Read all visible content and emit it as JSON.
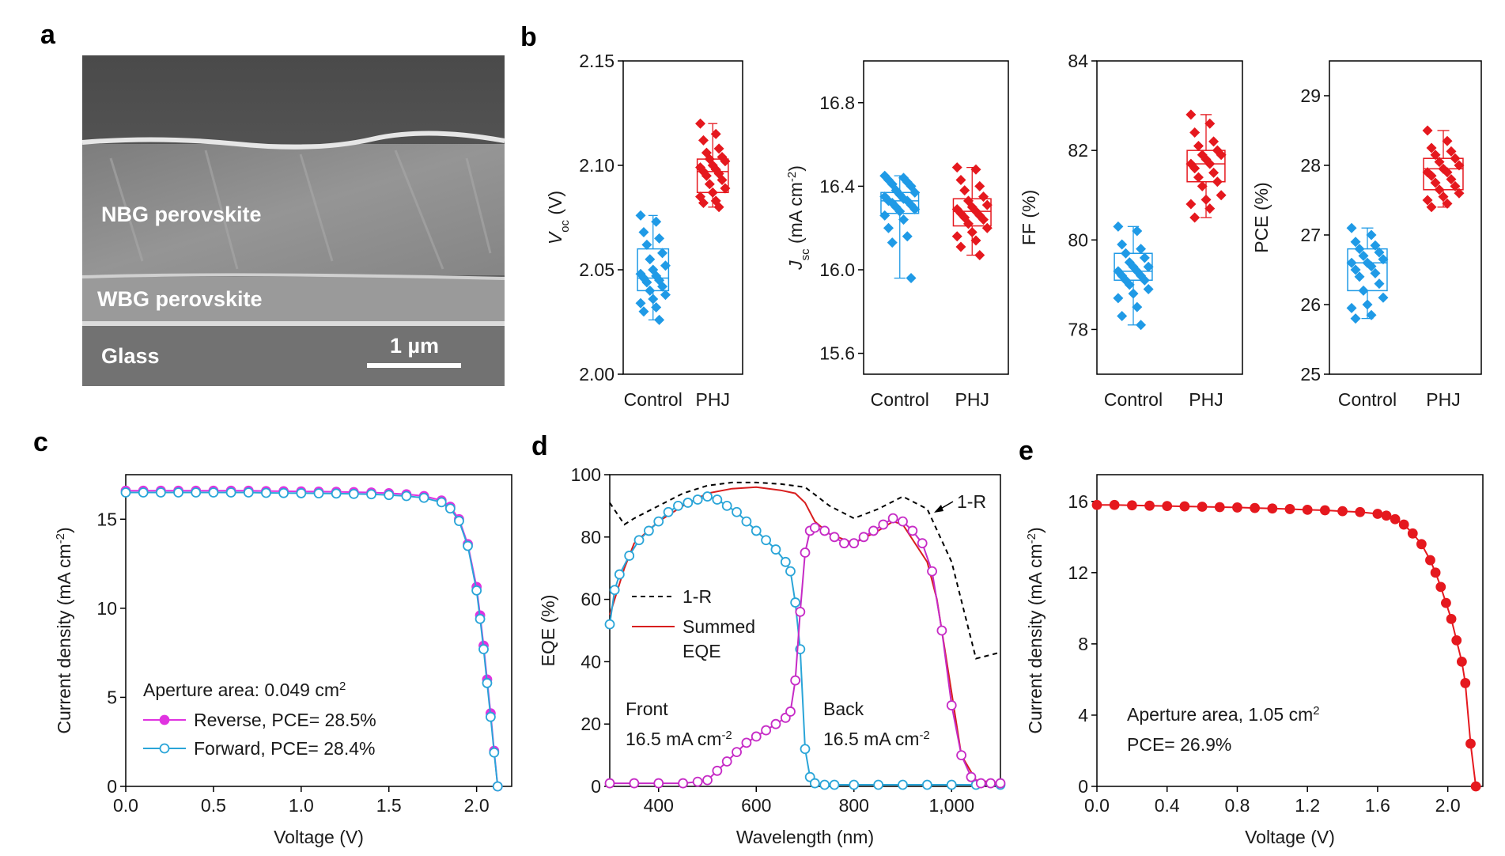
{
  "panel_labels": [
    "a",
    "b",
    "c",
    "d",
    "e"
  ],
  "image_panel": {
    "layers": [
      "NBG perovskite",
      "WBG perovskite",
      "Glass"
    ],
    "scale_bar": "1 µm"
  },
  "chart_data": [
    {
      "type": "box",
      "categories": [
        "Control",
        "PHJ"
      ],
      "ylabel": [
        {
          "text": "V",
          "style": "italic"
        },
        {
          "text": "oc",
          "style": "sub"
        },
        " (V)"
      ],
      "ylim": [
        2.0,
        2.15
      ],
      "yticks": [
        {
          "value": 2,
          "label": "2.00"
        },
        2.05,
        {
          "value": 2.1,
          "label": "2.10"
        },
        2.15
      ],
      "series": [
        {
          "color": "#1f9ae6",
          "box": [
            2.026,
            2.04,
            2.046,
            2.06,
            2.076
          ],
          "values": [
            2.076,
            2.073,
            2.068,
            2.065,
            2.062,
            2.058,
            2.055,
            2.052,
            2.05,
            2.048,
            2.047,
            2.046,
            2.045,
            2.044,
            2.042,
            2.04,
            2.038,
            2.036,
            2.034,
            2.032,
            2.03,
            2.026
          ]
        },
        {
          "color": "#e5181e",
          "box": [
            2.08,
            2.087,
            2.097,
            2.103,
            2.12
          ],
          "values": [
            2.12,
            2.115,
            2.112,
            2.108,
            2.106,
            2.104,
            2.103,
            2.102,
            2.1,
            2.099,
            2.098,
            2.097,
            2.096,
            2.095,
            2.093,
            2.091,
            2.089,
            2.087,
            2.085,
            2.083,
            2.082,
            2.08
          ]
        }
      ]
    },
    {
      "type": "box",
      "categories": [
        "Control",
        "PHJ"
      ],
      "ylabel": [
        {
          "text": "J",
          "style": "italic"
        },
        {
          "text": "sc",
          "style": "sub"
        },
        " (mA cm",
        {
          "text": "-2",
          "style": "sup"
        },
        ")"
      ],
      "ylim": [
        15.5,
        17.0
      ],
      "yticks": [
        15.6,
        {
          "value": 16,
          "label": "16.0"
        },
        16.4,
        16.8
      ],
      "series": [
        {
          "color": "#1f9ae6",
          "box": [
            15.96,
            16.27,
            16.33,
            16.37,
            16.45
          ],
          "values": [
            16.45,
            16.44,
            16.43,
            16.42,
            16.41,
            16.4,
            16.38,
            16.37,
            16.36,
            16.35,
            16.34,
            16.33,
            16.33,
            16.32,
            16.31,
            16.3,
            16.29,
            16.28,
            16.26,
            16.24,
            16.2,
            16.16,
            16.13,
            15.96
          ]
        },
        {
          "color": "#e5181e",
          "box": [
            16.07,
            16.21,
            16.28,
            16.34,
            16.49
          ],
          "values": [
            16.49,
            16.48,
            16.43,
            16.4,
            16.38,
            16.35,
            16.33,
            16.31,
            16.3,
            16.29,
            16.28,
            16.27,
            16.26,
            16.25,
            16.24,
            16.22,
            16.2,
            16.18,
            16.16,
            16.14,
            16.11,
            16.07
          ]
        }
      ]
    },
    {
      "type": "box",
      "categories": [
        "Control",
        "PHJ"
      ],
      "ylabel": "FF (%)",
      "ylim": [
        77,
        84
      ],
      "yticks": [
        78,
        80,
        82,
        84
      ],
      "series": [
        {
          "color": "#1f9ae6",
          "box": [
            78.1,
            79.1,
            79.3,
            79.7,
            80.3
          ],
          "values": [
            80.3,
            80.2,
            79.9,
            79.8,
            79.7,
            79.6,
            79.5,
            79.4,
            79.4,
            79.3,
            79.3,
            79.2,
            79.2,
            79.1,
            79.1,
            79.0,
            78.9,
            78.8,
            78.7,
            78.5,
            78.3,
            78.1
          ]
        },
        {
          "color": "#e5181e",
          "box": [
            80.5,
            81.3,
            81.7,
            82.0,
            82.8
          ],
          "values": [
            82.8,
            82.6,
            82.4,
            82.2,
            82.1,
            82.0,
            81.9,
            81.9,
            81.8,
            81.7,
            81.7,
            81.6,
            81.5,
            81.4,
            81.3,
            81.2,
            81.0,
            80.9,
            80.8,
            80.7,
            80.5
          ]
        }
      ]
    },
    {
      "type": "box",
      "categories": [
        "Control",
        "PHJ"
      ],
      "ylabel": "PCE (%)",
      "ylim": [
        25,
        29.5
      ],
      "yticks": [
        25,
        26,
        27,
        28,
        29
      ],
      "series": [
        {
          "color": "#1f9ae6",
          "box": [
            25.8,
            26.2,
            26.6,
            26.8,
            27.1
          ],
          "values": [
            27.1,
            27.0,
            26.9,
            26.85,
            26.8,
            26.75,
            26.7,
            26.65,
            26.6,
            26.6,
            26.55,
            26.5,
            26.45,
            26.4,
            26.3,
            26.2,
            26.1,
            26.0,
            25.95,
            25.85,
            25.8
          ]
        },
        {
          "color": "#e5181e",
          "box": [
            27.4,
            27.65,
            27.95,
            28.1,
            28.5
          ],
          "values": [
            28.5,
            28.35,
            28.25,
            28.2,
            28.15,
            28.1,
            28.05,
            28.0,
            27.95,
            27.9,
            27.9,
            27.85,
            27.8,
            27.75,
            27.7,
            27.65,
            27.6,
            27.55,
            27.5,
            27.45,
            27.4
          ]
        }
      ]
    },
    {
      "type": "line",
      "xlabel": "Voltage (V)",
      "ylabel": [
        "Current density (mA cm",
        {
          "text": "-2",
          "style": "sup"
        },
        ")"
      ],
      "xlim": [
        0,
        2.2
      ],
      "xticks": [
        {
          "value": 0,
          "label": "0.0"
        },
        0.5,
        {
          "value": 1,
          "label": "1.0"
        },
        1.5,
        {
          "value": 2,
          "label": "2.0"
        }
      ],
      "ylim": [
        0,
        17.5
      ],
      "yticks": [
        0,
        5,
        10,
        15
      ],
      "series": [
        {
          "name": "Reverse, PCE= 28.5%",
          "color": "#e033e0",
          "marker": "filled",
          "x": [
            0,
            0.1,
            0.2,
            0.3,
            0.4,
            0.5,
            0.6,
            0.7,
            0.8,
            0.9,
            1.0,
            1.1,
            1.2,
            1.3,
            1.4,
            1.5,
            1.6,
            1.7,
            1.8,
            1.85,
            1.9,
            1.95,
            2.0,
            2.02,
            2.04,
            2.06,
            2.08,
            2.1,
            2.12
          ],
          "values": [
            16.6,
            16.6,
            16.6,
            16.6,
            16.6,
            16.6,
            16.6,
            16.6,
            16.58,
            16.57,
            16.56,
            16.55,
            16.54,
            16.52,
            16.5,
            16.46,
            16.4,
            16.3,
            16.05,
            15.7,
            15.0,
            13.6,
            11.2,
            9.6,
            7.9,
            6.0,
            4.1,
            2.0,
            0
          ]
        },
        {
          "name": "Forward, PCE= 28.4%",
          "color": "#2aa5d8",
          "marker": "open",
          "x": [
            0,
            0.1,
            0.2,
            0.3,
            0.4,
            0.5,
            0.6,
            0.7,
            0.8,
            0.9,
            1.0,
            1.1,
            1.2,
            1.3,
            1.4,
            1.5,
            1.6,
            1.7,
            1.8,
            1.85,
            1.9,
            1.95,
            2.0,
            2.02,
            2.04,
            2.06,
            2.08,
            2.1,
            2.12
          ],
          "values": [
            16.5,
            16.5,
            16.5,
            16.5,
            16.5,
            16.5,
            16.5,
            16.5,
            16.48,
            16.47,
            16.46,
            16.45,
            16.44,
            16.42,
            16.4,
            16.36,
            16.3,
            16.2,
            15.95,
            15.6,
            14.9,
            13.5,
            11.0,
            9.4,
            7.7,
            5.8,
            3.9,
            1.9,
            0
          ]
        }
      ],
      "annotations": [
        {
          "lines": [
            [
              "Aperture area: 0.049 cm",
              {
                "text": "2",
                "style": "sup"
              }
            ]
          ]
        }
      ]
    },
    {
      "type": "line",
      "xlabel": "Wavelength (nm)",
      "ylabel": "EQE (%)",
      "xlim": [
        300,
        1100
      ],
      "xticks": [
        400,
        600,
        800,
        {
          "value": 1000,
          "label": "1,000"
        }
      ],
      "ylim": [
        0,
        100
      ],
      "yticks": [
        0,
        20,
        40,
        60,
        80,
        100
      ],
      "series": [
        {
          "name": [
            "1-R"
          ],
          "color": "#000000",
          "dash": "dashed",
          "x": [
            300,
            330,
            350,
            400,
            450,
            500,
            550,
            600,
            650,
            700,
            750,
            800,
            850,
            900,
            950,
            1000,
            1050,
            1100
          ],
          "values": [
            91,
            84,
            86,
            90,
            94,
            96.5,
            97.5,
            97.5,
            97,
            96,
            90,
            86,
            89,
            93,
            89,
            72,
            41,
            43
          ]
        },
        {
          "name": [
            "Summed",
            "EQE"
          ],
          "color": "#d81e1e",
          "x": [
            300,
            330,
            350,
            400,
            450,
            500,
            550,
            600,
            650,
            680,
            700,
            720,
            750,
            800,
            850,
            880,
            900,
            950,
            970,
            1000,
            1020,
            1050,
            1100
          ],
          "values": [
            55,
            70,
            78,
            85,
            90,
            94,
            95.5,
            96,
            95,
            94,
            91,
            85,
            81,
            78,
            82,
            85,
            84,
            72,
            60,
            30,
            10,
            2,
            1
          ]
        },
        {
          "color": "#2aa5d8",
          "marker": "open",
          "x": [
            300,
            310,
            320,
            340,
            360,
            380,
            400,
            420,
            440,
            460,
            480,
            500,
            520,
            540,
            560,
            580,
            600,
            620,
            640,
            660,
            670,
            680,
            690,
            700,
            710,
            720,
            740,
            760,
            800,
            850,
            900,
            950,
            1000,
            1050,
            1100
          ],
          "values": [
            52,
            63,
            68,
            74,
            79,
            82,
            85,
            88,
            90,
            91,
            92,
            93,
            92,
            90,
            88,
            85,
            82,
            79,
            76,
            72,
            69,
            59,
            44,
            12,
            3,
            1,
            0.5,
            0.5,
            0.5,
            0.5,
            0.5,
            0.5,
            0.5,
            0.5,
            0.5
          ]
        },
        {
          "color": "#c62bc6",
          "marker": "open",
          "x": [
            300,
            350,
            400,
            450,
            480,
            500,
            520,
            540,
            560,
            580,
            600,
            620,
            640,
            660,
            670,
            680,
            690,
            700,
            710,
            720,
            740,
            760,
            780,
            800,
            820,
            840,
            860,
            880,
            900,
            920,
            940,
            960,
            980,
            1000,
            1020,
            1040,
            1060,
            1080,
            1100
          ],
          "values": [
            1,
            1,
            1,
            1,
            1.5,
            2,
            5,
            8,
            11,
            14,
            16,
            18,
            20,
            22,
            24,
            34,
            56,
            75,
            82,
            83,
            82,
            80,
            78,
            78,
            80,
            82,
            84,
            86,
            85,
            82,
            78,
            69,
            50,
            26,
            10,
            3,
            1,
            1,
            1
          ]
        }
      ],
      "annotations": [
        {
          "lines": [
            "1-R"
          ]
        },
        {
          "lines": [
            "Front",
            [
              "16.5 mA cm",
              {
                "text": "-2",
                "style": "sup"
              }
            ]
          ]
        },
        {
          "lines": [
            "Back",
            [
              "16.5 mA cm",
              {
                "text": "-2",
                "style": "sup"
              }
            ]
          ]
        }
      ]
    },
    {
      "type": "line",
      "xlabel": "Voltage (V)",
      "ylabel": [
        "Current density (mA cm",
        {
          "text": "-2",
          "style": "sup"
        },
        ")"
      ],
      "xlim": [
        0,
        2.2
      ],
      "xticks": [
        {
          "value": 0,
          "label": "0.0"
        },
        0.4,
        0.8,
        1.2,
        1.6,
        {
          "value": 2,
          "label": "2.0"
        }
      ],
      "ylim": [
        0,
        17.5
      ],
      "yticks": [
        0,
        4,
        8,
        12,
        16
      ],
      "series": [
        {
          "color": "#e5181e",
          "marker": "filled",
          "x": [
            0,
            0.1,
            0.2,
            0.3,
            0.4,
            0.5,
            0.6,
            0.7,
            0.8,
            0.9,
            1.0,
            1.1,
            1.2,
            1.3,
            1.4,
            1.5,
            1.6,
            1.65,
            1.7,
            1.75,
            1.8,
            1.85,
            1.9,
            1.93,
            1.96,
            1.99,
            2.02,
            2.05,
            2.08,
            2.1,
            2.13,
            2.16
          ],
          "values": [
            15.8,
            15.8,
            15.78,
            15.76,
            15.74,
            15.72,
            15.7,
            15.68,
            15.66,
            15.63,
            15.6,
            15.57,
            15.53,
            15.5,
            15.45,
            15.4,
            15.3,
            15.2,
            15.0,
            14.7,
            14.2,
            13.6,
            12.7,
            12.0,
            11.2,
            10.3,
            9.4,
            8.2,
            7.0,
            5.8,
            2.4,
            0
          ]
        }
      ],
      "annotations": [
        {
          "lines": [
            [
              "Aperture area, 1.05 cm",
              {
                "text": "2",
                "style": "sup"
              }
            ],
            "PCE= 26.9%"
          ]
        }
      ]
    }
  ]
}
